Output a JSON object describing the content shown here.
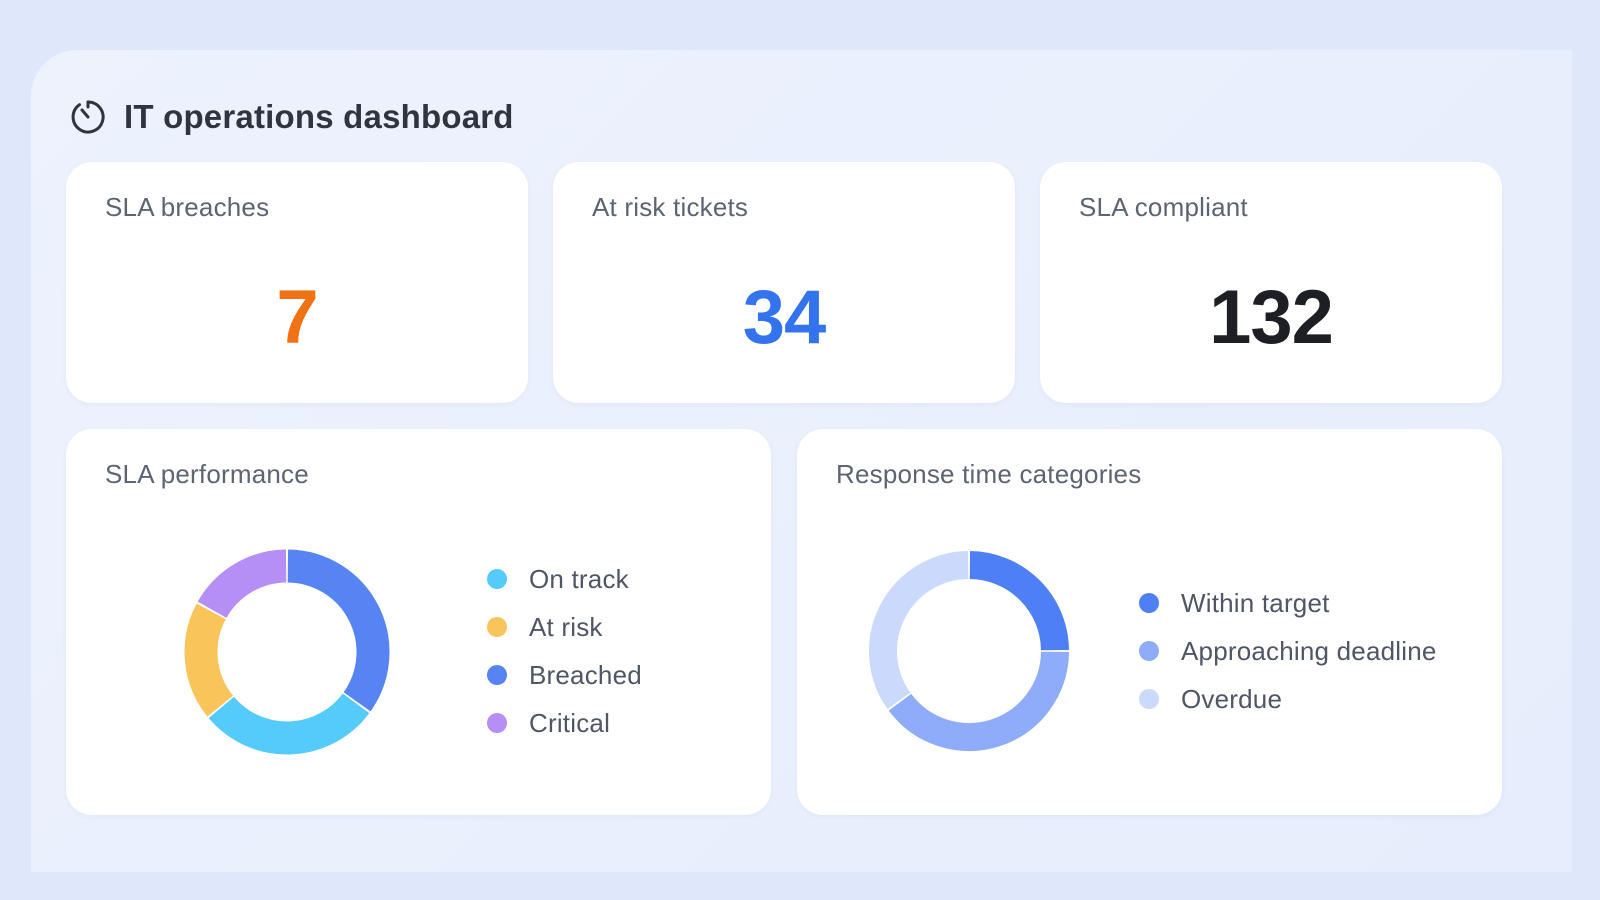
{
  "header": {
    "title": "IT operations dashboard",
    "icon": "stopwatch-icon"
  },
  "kpis": [
    {
      "label": "SLA breaches",
      "value": "7",
      "color": "#f07214"
    },
    {
      "label": "At risk tickets",
      "value": "34",
      "color": "#3473ee"
    },
    {
      "label": "SLA compliant",
      "value": "132",
      "color": "#1d1f25"
    }
  ],
  "sla_performance": {
    "title": "SLA performance",
    "legend": [
      {
        "label": "On track",
        "color": "#54cbfb"
      },
      {
        "label": "At risk",
        "color": "#f9c45a"
      },
      {
        "label": "Breached",
        "color": "#5684f2"
      },
      {
        "label": "Critical",
        "color": "#b58ff6"
      }
    ],
    "chart_data": {
      "type": "pie",
      "categories": [
        "Breached",
        "On track",
        "At risk",
        "Critical"
      ],
      "values": [
        35,
        29,
        19,
        17
      ]
    }
  },
  "response_time": {
    "title": "Response time categories",
    "legend": [
      {
        "label": "Within target",
        "color": "#4f7ff5"
      },
      {
        "label": "Approaching deadline",
        "color": "#8eacf9"
      },
      {
        "label": "Overdue",
        "color": "#cbd9fc"
      }
    ],
    "chart_data": {
      "type": "pie",
      "categories": [
        "Within target",
        "Approaching deadline",
        "Overdue"
      ],
      "values": [
        25,
        40,
        35
      ]
    }
  }
}
